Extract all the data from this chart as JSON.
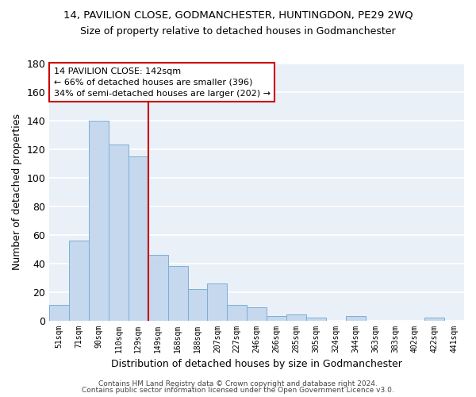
{
  "title1": "14, PAVILION CLOSE, GODMANCHESTER, HUNTINGDON, PE29 2WQ",
  "title2": "Size of property relative to detached houses in Godmanchester",
  "xlabel": "Distribution of detached houses by size in Godmanchester",
  "ylabel": "Number of detached properties",
  "footer1": "Contains HM Land Registry data © Crown copyright and database right 2024.",
  "footer2": "Contains public sector information licensed under the Open Government Licence v3.0.",
  "bar_labels": [
    "51sqm",
    "71sqm",
    "90sqm",
    "110sqm",
    "129sqm",
    "149sqm",
    "168sqm",
    "188sqm",
    "207sqm",
    "227sqm",
    "246sqm",
    "266sqm",
    "285sqm",
    "305sqm",
    "324sqm",
    "344sqm",
    "363sqm",
    "383sqm",
    "402sqm",
    "422sqm",
    "441sqm"
  ],
  "bar_values": [
    11,
    56,
    140,
    123,
    115,
    46,
    38,
    22,
    26,
    11,
    9,
    3,
    4,
    2,
    0,
    3,
    0,
    0,
    0,
    2,
    0
  ],
  "bar_color": "#c5d8ed",
  "bar_edgecolor": "#7aafd4",
  "bg_color": "#eaf0f8",
  "grid_color": "#ffffff",
  "vline_x": 4.5,
  "vline_color": "#cc0000",
  "annotation_line1": "14 PAVILION CLOSE: 142sqm",
  "annotation_line2": "← 66% of detached houses are smaller (396)",
  "annotation_line3": "34% of semi-detached houses are larger (202) →",
  "annotation_box_color": "#ffffff",
  "annotation_box_edgecolor": "#cc0000",
  "ylim": [
    0,
    180
  ],
  "yticks": [
    0,
    20,
    40,
    60,
    80,
    100,
    120,
    140,
    160,
    180
  ],
  "figsize": [
    6.0,
    5.0
  ],
  "dpi": 100
}
